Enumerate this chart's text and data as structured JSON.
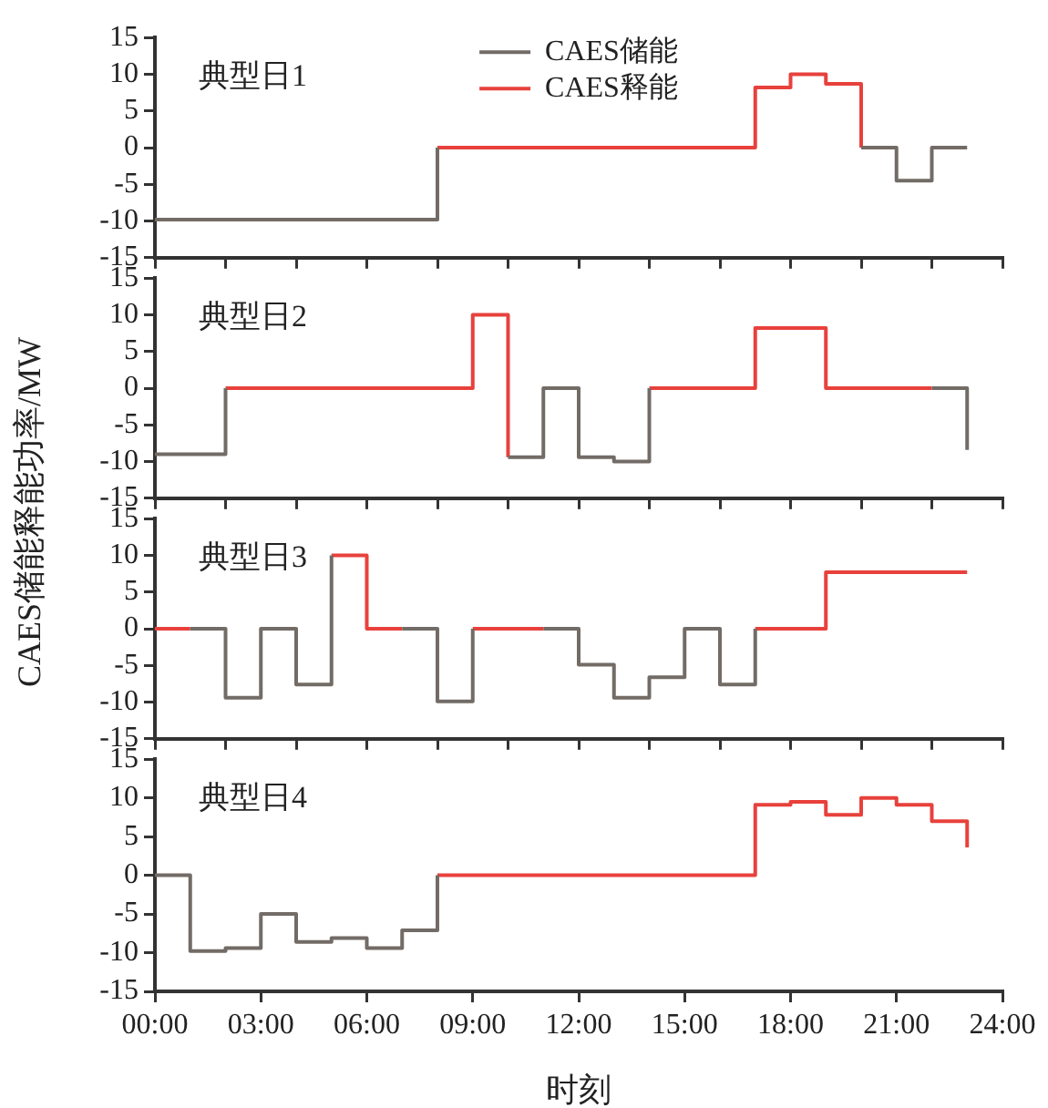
{
  "chart_data": [
    {
      "type": "step",
      "annotations": [
        "典型日1"
      ],
      "legend": "top",
      "marker": "none",
      "line_style": "solid",
      "grid": false,
      "tick_labels": "y",
      "x": [
        0,
        1,
        2,
        3,
        4,
        5,
        6,
        7,
        8,
        9,
        10,
        11,
        12,
        13,
        14,
        15,
        16,
        17,
        18,
        19,
        20,
        21,
        22,
        23
      ],
      "xlim": [
        0,
        24
      ],
      "xticks": [
        {
          "value": 0,
          "label": null
        },
        {
          "value": 2,
          "label": null
        },
        {
          "value": 4,
          "label": null
        },
        {
          "value": 6,
          "label": null
        },
        {
          "value": 8,
          "label": null
        },
        {
          "value": 10,
          "label": null
        },
        {
          "value": 12,
          "label": null
        },
        {
          "value": 14,
          "label": null
        },
        {
          "value": 16,
          "label": null
        },
        {
          "value": 18,
          "label": null
        },
        {
          "value": 20,
          "label": null
        },
        {
          "value": 22,
          "label": null
        },
        {
          "value": 24,
          "label": null
        }
      ],
      "ylim": [
        -15,
        15
      ],
      "yticks": [
        -15,
        -10,
        -5,
        0,
        5,
        10,
        15
      ],
      "series": [
        {
          "name": "CAES储能",
          "color": "#726b66",
          "values": [
            -9.8,
            -9.8,
            -9.8,
            -9.8,
            -9.8,
            -9.8,
            -9.8,
            -9.8,
            0,
            null,
            null,
            null,
            null,
            null,
            null,
            null,
            null,
            null,
            null,
            null,
            0,
            -4.5,
            0,
            0
          ]
        },
        {
          "name": "CAES释能",
          "color": "#e8413c",
          "values": [
            null,
            null,
            null,
            null,
            null,
            null,
            null,
            null,
            0,
            0,
            0,
            0,
            0,
            0,
            0,
            0,
            0,
            8.2,
            10,
            8.7,
            0,
            null,
            null,
            null
          ]
        }
      ]
    },
    {
      "type": "step",
      "annotations": [
        "典型日2"
      ],
      "ylabel": "CAES储能释能功率/MW",
      "marker": "none",
      "line_style": "solid",
      "grid": false,
      "tick_labels": "y",
      "x": [
        0,
        1,
        2,
        3,
        4,
        5,
        6,
        7,
        8,
        9,
        10,
        11,
        12,
        13,
        14,
        15,
        16,
        17,
        18,
        19,
        20,
        21,
        22,
        23
      ],
      "xlim": [
        0,
        24
      ],
      "xticks": [
        {
          "value": 0,
          "label": null
        },
        {
          "value": 2,
          "label": null
        },
        {
          "value": 4,
          "label": null
        },
        {
          "value": 6,
          "label": null
        },
        {
          "value": 8,
          "label": null
        },
        {
          "value": 10,
          "label": null
        },
        {
          "value": 12,
          "label": null
        },
        {
          "value": 14,
          "label": null
        },
        {
          "value": 16,
          "label": null
        },
        {
          "value": 18,
          "label": null
        },
        {
          "value": 20,
          "label": null
        },
        {
          "value": 22,
          "label": null
        },
        {
          "value": 24,
          "label": null
        }
      ],
      "ylim": [
        -15,
        15
      ],
      "yticks": [
        -15,
        -10,
        -5,
        0,
        5,
        10,
        15
      ],
      "series": [
        {
          "color": "#726b66",
          "values": [
            -9,
            -9,
            0,
            null,
            null,
            null,
            null,
            null,
            null,
            null,
            -9.4,
            0,
            -9.4,
            -10,
            0,
            null,
            null,
            null,
            null,
            null,
            null,
            null,
            0,
            -8.4
          ]
        },
        {
          "color": "#e8413c",
          "values": [
            null,
            null,
            0,
            0,
            0,
            0,
            0,
            0,
            0,
            10,
            -9.4,
            null,
            null,
            null,
            0,
            0,
            0,
            8.2,
            8.2,
            0,
            0,
            0,
            0,
            null
          ]
        }
      ]
    },
    {
      "type": "step",
      "annotations": [
        "典型日3"
      ],
      "marker": "none",
      "line_style": "solid",
      "grid": false,
      "tick_labels": "y",
      "x": [
        0,
        1,
        2,
        3,
        4,
        5,
        6,
        7,
        8,
        9,
        10,
        11,
        12,
        13,
        14,
        15,
        16,
        17,
        18,
        19,
        20,
        21,
        22,
        23
      ],
      "xlim": [
        0,
        24
      ],
      "xticks": [
        {
          "value": 0,
          "label": null
        },
        {
          "value": 2,
          "label": null
        },
        {
          "value": 4,
          "label": null
        },
        {
          "value": 6,
          "label": null
        },
        {
          "value": 8,
          "label": null
        },
        {
          "value": 10,
          "label": null
        },
        {
          "value": 12,
          "label": null
        },
        {
          "value": 14,
          "label": null
        },
        {
          "value": 16,
          "label": null
        },
        {
          "value": 18,
          "label": null
        },
        {
          "value": 20,
          "label": null
        },
        {
          "value": 22,
          "label": null
        },
        {
          "value": 24,
          "label": null
        }
      ],
      "ylim": [
        -15,
        15
      ],
      "yticks": [
        -15,
        -10,
        -5,
        0,
        5,
        10,
        15
      ],
      "series": [
        {
          "color": "#726b66",
          "values": [
            null,
            0,
            -9.4,
            0,
            -7.6,
            10,
            null,
            0,
            -9.9,
            0,
            null,
            0,
            -4.9,
            -9.4,
            -6.6,
            0,
            -7.6,
            0,
            null,
            null,
            null,
            null,
            null,
            null
          ]
        },
        {
          "color": "#e8413c",
          "values": [
            0,
            0,
            null,
            null,
            null,
            10,
            0,
            0,
            null,
            0,
            0,
            0,
            null,
            null,
            null,
            null,
            null,
            0,
            0,
            7.7,
            7.7,
            7.7,
            7.7,
            7.7
          ]
        }
      ]
    },
    {
      "type": "step",
      "annotations": [
        "典型日4"
      ],
      "xlabel": "时刻",
      "marker": "none",
      "line_style": "solid",
      "grid": false,
      "x": [
        0,
        1,
        2,
        3,
        4,
        5,
        6,
        7,
        8,
        9,
        10,
        11,
        12,
        13,
        14,
        15,
        16,
        17,
        18,
        19,
        20,
        21,
        22,
        23
      ],
      "xlim": [
        0,
        24
      ],
      "xticks": [
        {
          "value": 0,
          "label": "00:00"
        },
        {
          "value": 3,
          "label": "03:00"
        },
        {
          "value": 6,
          "label": "06:00"
        },
        {
          "value": 9,
          "label": "09:00"
        },
        {
          "value": 12,
          "label": "12:00"
        },
        {
          "value": 15,
          "label": "15:00"
        },
        {
          "value": 18,
          "label": "18:00"
        },
        {
          "value": 21,
          "label": "21:00"
        },
        {
          "value": 24,
          "label": "24:00"
        }
      ],
      "ylim": [
        -15,
        15
      ],
      "yticks": [
        -15,
        -10,
        -5,
        0,
        5,
        10,
        15
      ],
      "series": [
        {
          "color": "#726b66",
          "values": [
            0,
            -9.8,
            -9.4,
            -5,
            -8.6,
            -8.1,
            -9.4,
            -7.1,
            0,
            null,
            null,
            null,
            null,
            null,
            null,
            null,
            null,
            null,
            null,
            null,
            null,
            null,
            null,
            null
          ]
        },
        {
          "color": "#e8413c",
          "values": [
            null,
            null,
            null,
            null,
            null,
            null,
            null,
            null,
            0,
            0,
            0,
            0,
            0,
            0,
            0,
            0,
            0,
            9.1,
            9.5,
            7.8,
            10,
            9.1,
            7,
            3.6
          ]
        }
      ]
    }
  ]
}
